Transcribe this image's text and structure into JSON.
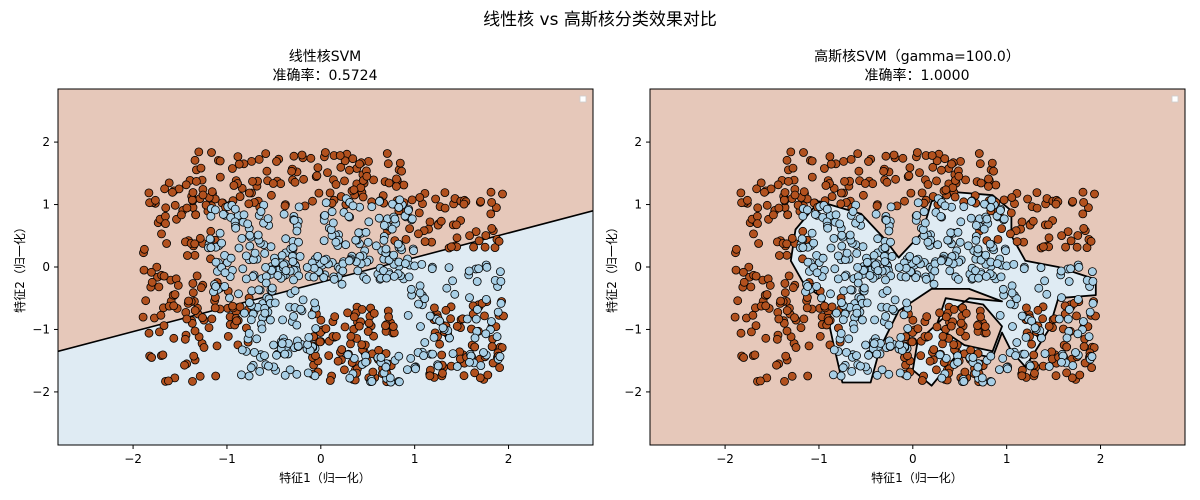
{
  "figure": {
    "suptitle": "线性核 vs 高斯核分类效果对比"
  },
  "colors": {
    "region_class0": "#e6c8ba",
    "region_class1": "#dfebf3",
    "point_class0": "#b2511e",
    "point_class1": "#a8cfe6",
    "edge": "#000000",
    "boundary": "#000000"
  },
  "chart_data": [
    {
      "type": "scatter",
      "title_line1": "线性核SVM",
      "title_line2": "准确率：0.5724",
      "xlabel": "特征1（归一化）",
      "ylabel": "特征2（归一化）",
      "xlim": [
        -2.8,
        2.9
      ],
      "ylim": [
        -2.85,
        2.85
      ],
      "xticks": [
        -2,
        -1,
        0,
        1,
        2
      ],
      "yticks": [
        -2,
        -1,
        0,
        1,
        2
      ],
      "decision_boundary": {
        "kind": "line",
        "points": [
          [
            -2.8,
            -1.35
          ],
          [
            2.9,
            0.9
          ]
        ]
      },
      "legend": "top-right",
      "series": [
        {
          "class": 0,
          "approx_count": 520
        },
        {
          "class": 1,
          "approx_count": 480
        }
      ]
    },
    {
      "type": "scatter",
      "title_line1": "高斯核SVM（gamma=100.0）",
      "title_line2": "准确率：1.0000",
      "xlabel": "特征1（归一化）",
      "ylabel": "特征2（归一化）",
      "xlim": [
        -2.8,
        2.9
      ],
      "ylim": [
        -2.85,
        2.85
      ],
      "xticks": [
        -2,
        -1,
        0,
        1,
        2
      ],
      "yticks": [
        -2,
        -1,
        0,
        1,
        2
      ],
      "decision_boundary": {
        "kind": "rbf-contour"
      },
      "legend": "top-right",
      "series": [
        {
          "class": 0,
          "approx_count": 520
        },
        {
          "class": 1,
          "approx_count": 480
        }
      ]
    }
  ]
}
